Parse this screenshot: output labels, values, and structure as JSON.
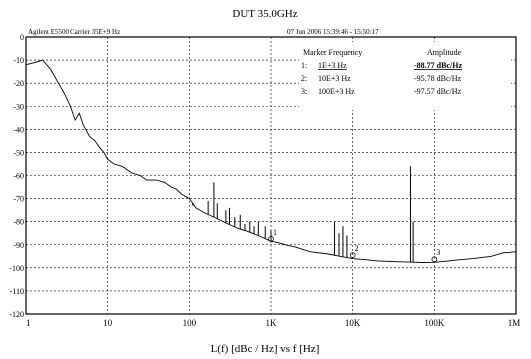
{
  "chart_data": {
    "type": "line",
    "title": "DUT 35.0GHz",
    "header_left": "Agilent E5500",
    "header_center": "Carrier 35E+9 Hz",
    "header_right": "07 Jun 2006 15:39:46 - 15:50:17",
    "xlabel": "L(f) [dBc / Hz] vs f [Hz]",
    "ylabel": "",
    "x_scale": "log",
    "xlim": [
      1,
      1000000
    ],
    "ylim": [
      -120,
      0
    ],
    "grid": true,
    "x_ticks": [
      {
        "value": 1,
        "label": "1"
      },
      {
        "value": 10,
        "label": "10"
      },
      {
        "value": 100,
        "label": "100"
      },
      {
        "value": 1000,
        "label": "1K"
      },
      {
        "value": 10000,
        "label": "10K"
      },
      {
        "value": 100000,
        "label": "100K"
      },
      {
        "value": 1000000,
        "label": "1M"
      }
    ],
    "y_ticks": [
      {
        "value": 0,
        "label": "0"
      },
      {
        "value": -10,
        "label": "-10"
      },
      {
        "value": -20,
        "label": "-20"
      },
      {
        "value": -30,
        "label": "-30"
      },
      {
        "value": -40,
        "label": "-40"
      },
      {
        "value": -50,
        "label": "-50"
      },
      {
        "value": -60,
        "label": "-60"
      },
      {
        "value": -70,
        "label": "-70"
      },
      {
        "value": -80,
        "label": "-80"
      },
      {
        "value": -90,
        "label": "-90"
      },
      {
        "value": -100,
        "label": "-100"
      },
      {
        "value": -110,
        "label": "-110"
      },
      {
        "value": -120,
        "label": "-120"
      }
    ],
    "marker_table": {
      "headers": [
        "Marker Frequency",
        "Amplitude"
      ],
      "rows": [
        {
          "marker": "1:",
          "frequency": "1E+3 Hz",
          "amplitude": "-88.77 dBc/Hz"
        },
        {
          "marker": "2:",
          "frequency": "10E+3 Hz",
          "amplitude": "-95.78 dBc/Hz"
        },
        {
          "marker": "3:",
          "frequency": "100E+3 Hz",
          "amplitude": "-97.57 dBc/Hz"
        }
      ]
    },
    "markers": [
      {
        "label": "1",
        "x": 1000,
        "y": -88.77
      },
      {
        "label": "2",
        "x": 10000,
        "y": -95.78
      },
      {
        "label": "3",
        "x": 100000,
        "y": -97.57
      }
    ],
    "series": [
      {
        "x": [
          1,
          1.3,
          1.6,
          2,
          2.5,
          3,
          3.5,
          4,
          4.5,
          5,
          6,
          7,
          8,
          9,
          10,
          12,
          15,
          20,
          25,
          30,
          40,
          50,
          60,
          70,
          80,
          100,
          110,
          120,
          150,
          200,
          300,
          400,
          500,
          700,
          1000,
          1200,
          1500,
          2000,
          3000,
          5000,
          7000,
          10000,
          15000,
          20000,
          30000,
          50000,
          70000,
          100000,
          150000,
          200000,
          300000,
          500000,
          700000,
          1000000
        ],
        "y": [
          -12,
          -11,
          -10,
          -14,
          -20,
          -25,
          -30,
          -36,
          -33,
          -38,
          -43,
          -45,
          -48,
          -50,
          -53,
          -55,
          -56,
          -59,
          -60,
          -62,
          -62,
          -63,
          -65,
          -66,
          -68,
          -70,
          -72,
          -74,
          -76,
          -78,
          -81,
          -83,
          -84,
          -86,
          -88.5,
          -89,
          -90,
          -91,
          -93,
          -94,
          -95,
          -96,
          -96.5,
          -97,
          -97.3,
          -97.5,
          -97.7,
          -97.6,
          -97,
          -96.5,
          -96,
          -95,
          -93.5,
          -93
        ]
      }
    ],
    "spurs": [
      {
        "x": 110,
        "top": -73
      },
      {
        "x": 170,
        "top": -71
      },
      {
        "x": 200,
        "top": -63
      },
      {
        "x": 220,
        "top": -72
      },
      {
        "x": 280,
        "top": -75
      },
      {
        "x": 310,
        "top": -74
      },
      {
        "x": 360,
        "top": -78
      },
      {
        "x": 420,
        "top": -77
      },
      {
        "x": 480,
        "top": -81
      },
      {
        "x": 550,
        "top": -80
      },
      {
        "x": 620,
        "top": -82
      },
      {
        "x": 700,
        "top": -80
      },
      {
        "x": 850,
        "top": -82
      },
      {
        "x": 1000,
        "top": -84
      },
      {
        "x": 6000,
        "top": -80
      },
      {
        "x": 6800,
        "top": -85
      },
      {
        "x": 7600,
        "top": -82
      },
      {
        "x": 8500,
        "top": -86
      },
      {
        "x": 51000,
        "top": -56
      },
      {
        "x": 55000,
        "top": -80
      }
    ]
  }
}
